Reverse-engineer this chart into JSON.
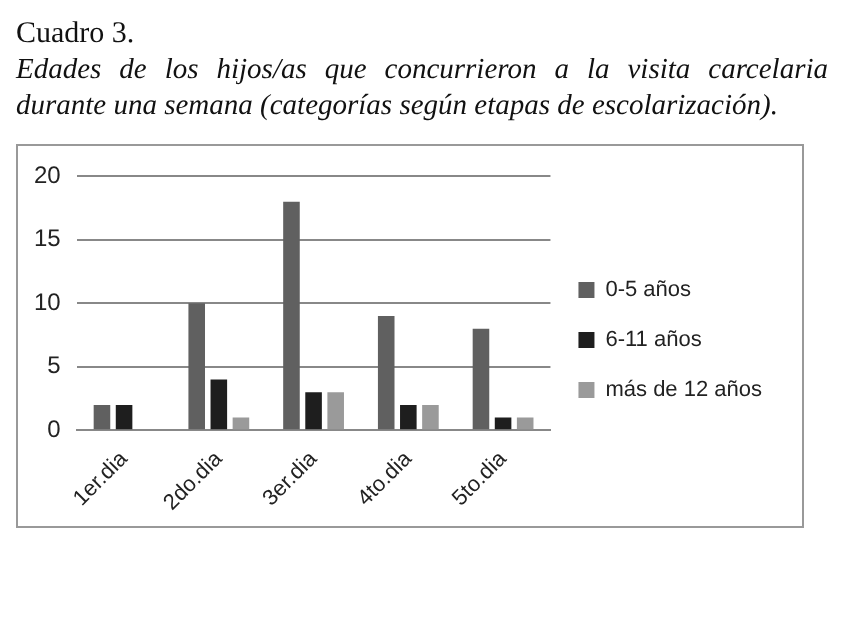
{
  "chart_data": {
    "type": "bar",
    "title": "Cuadro 3.",
    "subtitle": "Edades de los hijos/as que concurrieron a la visita carcelaria durante una semana (categorías según etapas de escolarización).",
    "categories": [
      "1er.dia",
      "2do.dia",
      "3er.dia",
      "4to.dia",
      "5to.dia"
    ],
    "series": [
      {
        "name": "0-5 años",
        "color": "#606060",
        "values": [
          2,
          10,
          18,
          9,
          8
        ]
      },
      {
        "name": "6-11 años",
        "color": "#1e1e1e",
        "values": [
          2,
          4,
          3,
          2,
          1
        ]
      },
      {
        "name": "más de 12 años",
        "color": "#9a9a9a",
        "values": [
          0,
          1,
          3,
          2,
          1
        ]
      }
    ],
    "ylim": [
      0,
      20
    ],
    "yticks": [
      0,
      5,
      10,
      15,
      20
    ],
    "grid": "y",
    "legend": "right"
  }
}
